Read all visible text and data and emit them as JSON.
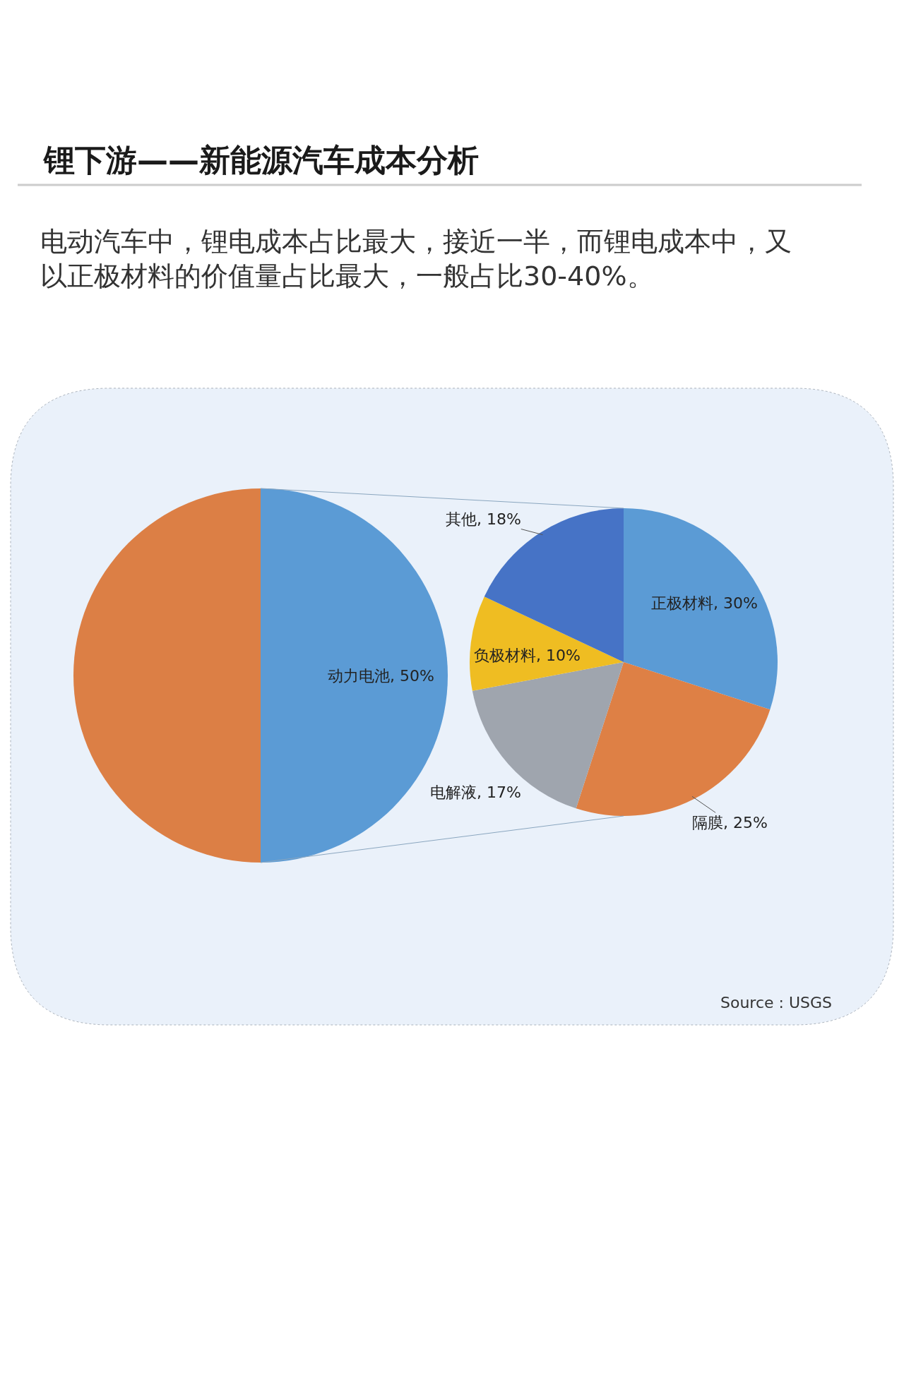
{
  "chart_data": [
    {
      "type": "pie",
      "title": "锂下游——新能源汽车成本分析",
      "subtitle": "电动汽车中，锂电成本占比最大，接近一半，而锂电成本中，又以正极材料的价值量占比最大，一般占比30-40%。",
      "categories": [
        "动力电池",
        null
      ],
      "values": [
        50,
        50
      ],
      "colors": [
        "#5b9bd5",
        "#dc7f45"
      ],
      "value_labels": [
        "50%",
        null
      ],
      "legend": false
    },
    {
      "type": "pie",
      "categories": [
        "正极材料",
        "隔膜",
        "电解液",
        "负极材料",
        "其他"
      ],
      "values": [
        30,
        25,
        17,
        10,
        18
      ],
      "colors": [
        "#5b9bd5",
        "#de8045",
        "#9fa5ae",
        "#efbd22",
        "#4673c6"
      ],
      "value_labels": [
        "30%",
        "25%",
        "17%",
        "10%",
        "18%"
      ],
      "annotations": [
        "Source : USGS"
      ],
      "legend": false
    }
  ]
}
